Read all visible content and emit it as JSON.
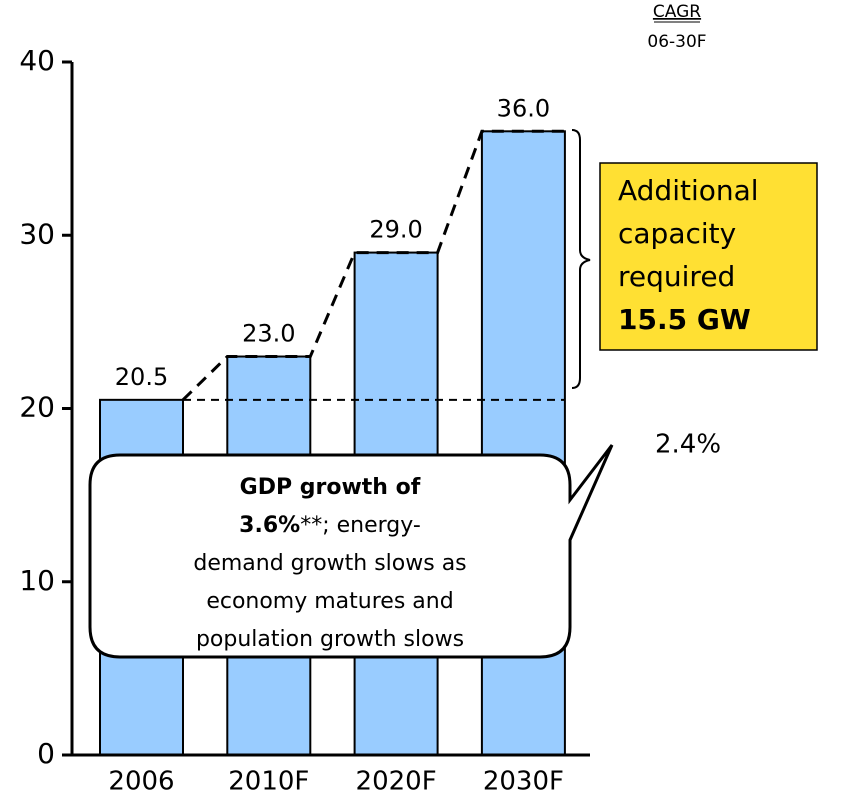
{
  "chart_data": {
    "type": "bar",
    "categories": [
      "2006",
      "2010F",
      "2020F",
      "2030F"
    ],
    "values": [
      20.5,
      23,
      29,
      36
    ],
    "value_labels": [
      "20.5",
      "23.0",
      "29.0",
      "36.0"
    ],
    "color": "#99ccff",
    "ylim": [
      0,
      40
    ],
    "yticks": [
      0,
      10,
      20,
      30,
      40
    ],
    "cagr_header": "CAGR",
    "cagr_period": "06-30F",
    "cagr_value": "2.4%",
    "box_lines": [
      "Additional",
      "capacity",
      "required"
    ],
    "box_bold": "15.5 GW",
    "box_color": "#ffe033",
    "callout": [
      [
        {
          "text": "GDP growth of",
          "bold": true
        }
      ],
      [
        {
          "text": "3.6%",
          "bold": true
        },
        {
          "text": "**; energy-",
          "bold": false
        }
      ],
      [
        {
          "text": "demand growth slows as",
          "bold": false
        }
      ],
      [
        {
          "text": "economy matures and",
          "bold": false
        }
      ],
      [
        {
          "text": "population growth slows",
          "bold": false
        }
      ]
    ]
  }
}
